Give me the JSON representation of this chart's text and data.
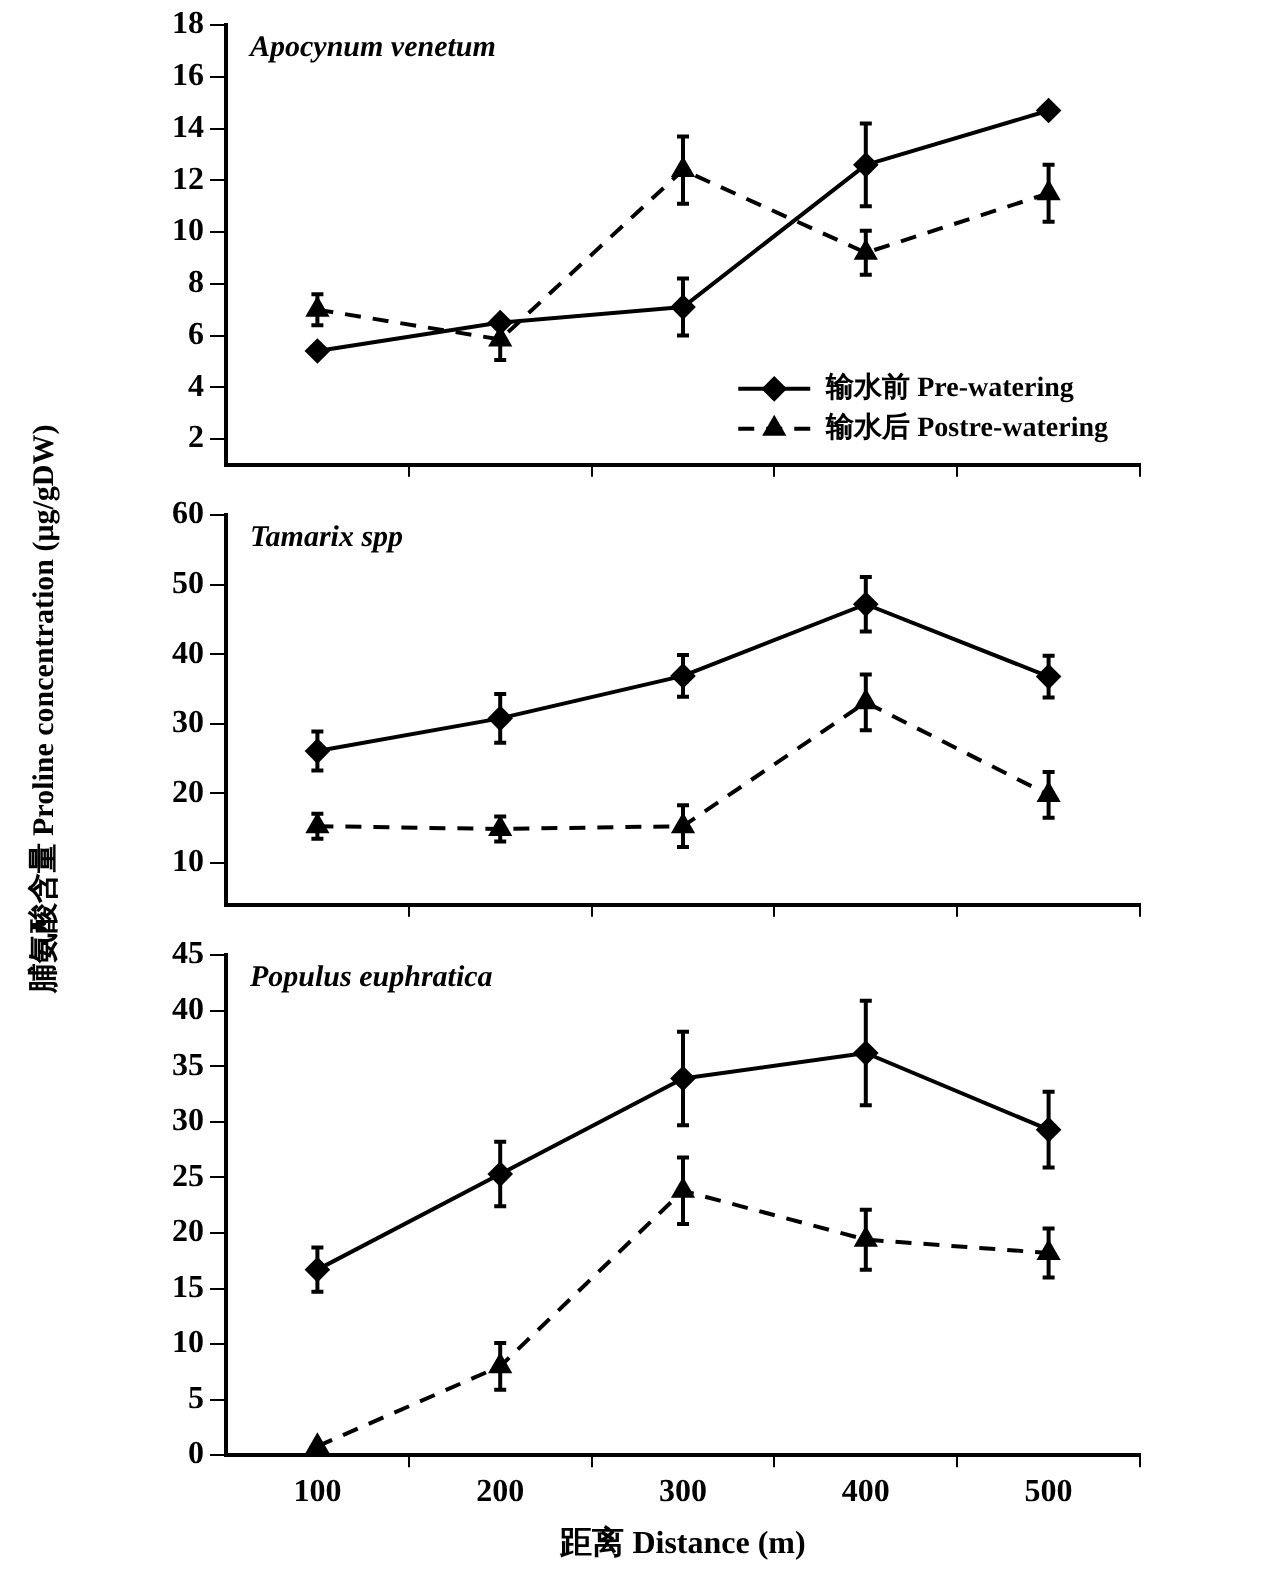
{
  "chart_data": [
    {
      "type": "line",
      "title": "Apocynum venetum",
      "x": [
        100,
        200,
        300,
        400,
        500
      ],
      "xlim": [
        50,
        550
      ],
      "xticks": [
        100,
        {
          "value": 150,
          "label": null
        },
        200,
        {
          "value": 250,
          "label": null
        },
        300,
        {
          "value": 350,
          "label": null
        },
        400,
        {
          "value": 450,
          "label": null
        },
        500,
        {
          "value": 550,
          "label": null
        }
      ],
      "ylim": [
        1,
        18
      ],
      "yticks": [
        2,
        4,
        6,
        8,
        10,
        12,
        14,
        16,
        18
      ],
      "tick_labels": "y",
      "grid": false,
      "legend": "bottom right",
      "series": [
        {
          "name": "输水前 Pre-watering",
          "color": "#000000",
          "marker": "diamond",
          "line_style": "solid",
          "values": [
            5.4,
            6.5,
            7.1,
            12.6,
            14.7
          ],
          "errors": [
            null,
            null,
            1.1,
            1.6,
            null
          ]
        },
        {
          "name": "输水后 Postre-watering",
          "color": "#000000",
          "marker": "triangle",
          "line_style": "dashed",
          "values": [
            7.0,
            5.85,
            12.4,
            9.2,
            11.5
          ],
          "errors": [
            0.6,
            0.8,
            1.3,
            0.85,
            1.1
          ]
        }
      ]
    },
    {
      "type": "line",
      "title": "Tamarix spp",
      "ylabel": "脯氨酸含量 Proline concentration (μg/gDW)",
      "x": [
        100,
        200,
        300,
        400,
        500
      ],
      "xlim": [
        50,
        550
      ],
      "xticks": [
        100,
        {
          "value": 150,
          "label": null
        },
        200,
        {
          "value": 250,
          "label": null
        },
        300,
        {
          "value": 350,
          "label": null
        },
        400,
        {
          "value": 450,
          "label": null
        },
        500,
        {
          "value": 550,
          "label": null
        }
      ],
      "ylim": [
        4,
        60
      ],
      "yticks": [
        10,
        20,
        30,
        40,
        50,
        60
      ],
      "tick_labels": "y",
      "grid": false,
      "series": [
        {
          "color": "#000000",
          "marker": "diamond",
          "line_style": "solid",
          "values": [
            26.1,
            30.8,
            36.9,
            47.2,
            36.8
          ],
          "errors": [
            2.8,
            3.5,
            3.0,
            3.9,
            3.0
          ]
        },
        {
          "color": "#000000",
          "marker": "triangle",
          "line_style": "dashed",
          "values": [
            15.3,
            14.9,
            15.3,
            33.1,
            19.8
          ],
          "errors": [
            1.8,
            1.8,
            3.0,
            4.0,
            3.3
          ]
        }
      ]
    },
    {
      "type": "line",
      "title": "Populus euphratica",
      "xlabel": "距离 Distance (m)",
      "x": [
        100,
        200,
        300,
        400,
        500
      ],
      "xlim": [
        50,
        550
      ],
      "xticks": [
        100,
        {
          "value": 150,
          "label": null
        },
        200,
        {
          "value": 250,
          "label": null
        },
        300,
        {
          "value": 350,
          "label": null
        },
        400,
        {
          "value": 450,
          "label": null
        },
        500,
        {
          "value": 550,
          "label": null
        }
      ],
      "ylim": [
        0,
        45
      ],
      "yticks": [
        0,
        5,
        10,
        15,
        20,
        25,
        30,
        35,
        40,
        45
      ],
      "grid": false,
      "series": [
        {
          "color": "#000000",
          "marker": "diamond",
          "line_style": "solid",
          "values": [
            16.7,
            25.3,
            33.9,
            36.2,
            29.3
          ],
          "errors": [
            2.0,
            2.9,
            4.2,
            4.7,
            3.4
          ]
        },
        {
          "color": "#000000",
          "marker": "triangle",
          "line_style": "dashed",
          "values": [
            0.8,
            8.0,
            23.8,
            19.4,
            18.2
          ],
          "errors": [
            null,
            2.1,
            3.0,
            2.7,
            2.2
          ]
        }
      ]
    }
  ]
}
